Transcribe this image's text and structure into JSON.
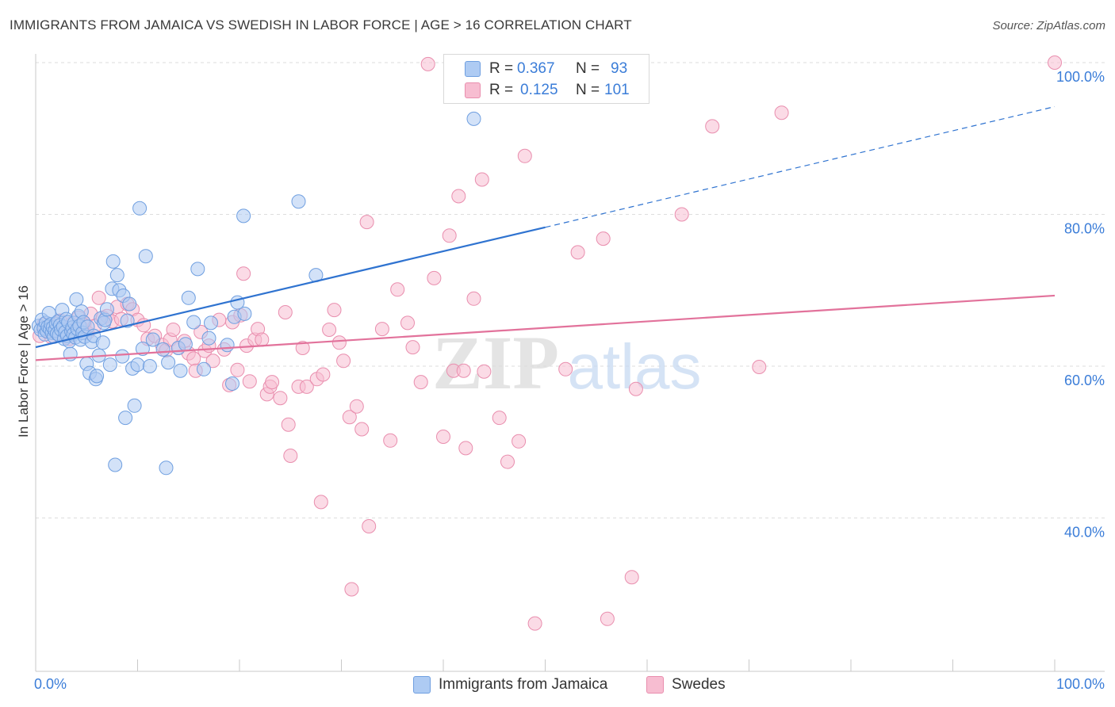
{
  "title": "IMMIGRANTS FROM JAMAICA VS SWEDISH IN LABOR FORCE | AGE > 16 CORRELATION CHART",
  "source": "Source: ZipAtlas.com",
  "watermark": {
    "zip": "ZIP",
    "atlas": "atlas"
  },
  "legend_top": {
    "r_label": "R =",
    "n_label": "N =",
    "rows": [
      {
        "r": "0.367",
        "n": "93"
      },
      {
        "r": "0.125",
        "n": "101"
      }
    ]
  },
  "legend_bottom": [
    "Immigrants from Jamaica",
    "Swedes"
  ],
  "chart_data": {
    "type": "scatter",
    "title": "IMMIGRANTS FROM JAMAICA VS SWEDISH IN LABOR FORCE | AGE > 16 CORRELATION CHART",
    "xlabel": "",
    "ylabel": "In Labor Force | Age > 16",
    "xlim": [
      0,
      100
    ],
    "ylim": [
      20,
      100
    ],
    "x_tick_labels": [
      {
        "value": 0,
        "label": "0.0%"
      },
      {
        "value": 100,
        "label": "100.0%"
      }
    ],
    "y_tick_labels": [
      {
        "value": 100,
        "label": "100.0%"
      },
      {
        "value": 80,
        "label": "80.0%"
      },
      {
        "value": 60,
        "label": "60.0%"
      },
      {
        "value": 40,
        "label": "40.0%"
      }
    ],
    "y_gridlines": [
      100,
      80,
      60,
      40
    ],
    "x_minor_ticks": [
      10,
      20,
      30,
      40,
      50,
      60,
      70,
      80,
      90,
      100
    ],
    "colors": {
      "jamaica_fill": "#aecbf3",
      "jamaica_stroke": "#6f9fe0",
      "jamaica_line": "#2f73d0",
      "swedes_fill": "#f7bdd1",
      "swedes_stroke": "#e98eae",
      "swedes_line": "#e2729b",
      "grid": "#dddddd",
      "axis_label": "#3b7dd8"
    },
    "series": [
      {
        "name": "Immigrants from Jamaica",
        "r": 0.367,
        "n": 93,
        "trend": {
          "x": [
            0,
            50
          ],
          "y": [
            62.5,
            78.3
          ],
          "dashed_extension": {
            "x": [
              50,
              100
            ],
            "y": [
              78.3,
              94.2
            ]
          }
        },
        "points": [
          [
            0.3,
            65.3
          ],
          [
            0.5,
            64.8
          ],
          [
            0.6,
            66.1
          ],
          [
            0.8,
            65.0
          ],
          [
            0.9,
            64.2
          ],
          [
            1.0,
            65.7
          ],
          [
            1.1,
            64.6
          ],
          [
            1.2,
            65.2
          ],
          [
            1.3,
            67.0
          ],
          [
            1.4,
            64.9
          ],
          [
            1.5,
            65.5
          ],
          [
            1.6,
            64.4
          ],
          [
            1.7,
            65.1
          ],
          [
            1.8,
            63.9
          ],
          [
            1.9,
            64.7
          ],
          [
            2.0,
            65.6
          ],
          [
            2.1,
            64.3
          ],
          [
            2.2,
            65.9
          ],
          [
            2.3,
            64.1
          ],
          [
            2.4,
            65.4
          ],
          [
            2.5,
            64.8
          ],
          [
            2.6,
            67.4
          ],
          [
            2.7,
            65.2
          ],
          [
            2.8,
            63.6
          ],
          [
            2.9,
            64.5
          ],
          [
            3.0,
            66.2
          ],
          [
            3.1,
            64.0
          ],
          [
            3.2,
            65.8
          ],
          [
            3.3,
            63.3
          ],
          [
            3.4,
            61.6
          ],
          [
            3.5,
            64.6
          ],
          [
            3.6,
            65.1
          ],
          [
            3.7,
            64.2
          ],
          [
            3.8,
            65.7
          ],
          [
            3.9,
            63.8
          ],
          [
            4.0,
            68.8
          ],
          [
            4.1,
            64.9
          ],
          [
            4.2,
            66.6
          ],
          [
            4.3,
            65.3
          ],
          [
            4.4,
            63.5
          ],
          [
            4.5,
            67.2
          ],
          [
            4.6,
            64.4
          ],
          [
            4.7,
            65.8
          ],
          [
            4.8,
            63.9
          ],
          [
            5.0,
            60.3
          ],
          [
            5.1,
            65.2
          ],
          [
            5.3,
            59.1
          ],
          [
            5.5,
            63.2
          ],
          [
            5.7,
            64.0
          ],
          [
            5.9,
            58.3
          ],
          [
            6.0,
            58.7
          ],
          [
            6.2,
            61.4
          ],
          [
            6.4,
            66.3
          ],
          [
            6.6,
            63.1
          ],
          [
            6.7,
            65.7
          ],
          [
            6.8,
            66.1
          ],
          [
            7.0,
            67.5
          ],
          [
            7.3,
            60.2
          ],
          [
            7.5,
            70.2
          ],
          [
            7.6,
            73.8
          ],
          [
            7.8,
            47.0
          ],
          [
            8.0,
            72.0
          ],
          [
            8.2,
            70.0
          ],
          [
            8.5,
            61.3
          ],
          [
            8.6,
            69.3
          ],
          [
            8.8,
            53.2
          ],
          [
            9.0,
            66.0
          ],
          [
            9.2,
            68.2
          ],
          [
            9.5,
            59.7
          ],
          [
            9.7,
            54.8
          ],
          [
            10.0,
            60.2
          ],
          [
            10.2,
            80.8
          ],
          [
            10.5,
            62.3
          ],
          [
            10.8,
            74.5
          ],
          [
            11.2,
            60.0
          ],
          [
            11.5,
            63.5
          ],
          [
            12.5,
            62.2
          ],
          [
            12.8,
            46.6
          ],
          [
            13.0,
            60.5
          ],
          [
            14.0,
            62.4
          ],
          [
            14.2,
            59.4
          ],
          [
            14.7,
            62.9
          ],
          [
            15.0,
            69.0
          ],
          [
            15.5,
            65.8
          ],
          [
            15.9,
            72.8
          ],
          [
            16.5,
            59.6
          ],
          [
            17.0,
            63.7
          ],
          [
            17.2,
            65.7
          ],
          [
            18.8,
            62.8
          ],
          [
            19.3,
            57.7
          ],
          [
            19.5,
            66.5
          ],
          [
            19.8,
            68.4
          ],
          [
            20.4,
            79.8
          ],
          [
            20.5,
            66.9
          ],
          [
            25.8,
            81.7
          ],
          [
            27.5,
            72.0
          ],
          [
            43.0,
            92.6
          ]
        ]
      },
      {
        "name": "Swedes",
        "r": 0.125,
        "n": 101,
        "trend": {
          "x": [
            0,
            100
          ],
          "y": [
            60.8,
            69.3
          ]
        },
        "points": [
          [
            0.4,
            64.0
          ],
          [
            0.8,
            65.5
          ],
          [
            1.2,
            64.8
          ],
          [
            1.5,
            63.9
          ],
          [
            1.8,
            65.2
          ],
          [
            2.1,
            64.5
          ],
          [
            2.4,
            66.0
          ],
          [
            2.7,
            64.2
          ],
          [
            3.0,
            65.0
          ],
          [
            3.3,
            63.6
          ],
          [
            3.6,
            65.7
          ],
          [
            3.9,
            64.8
          ],
          [
            4.2,
            66.4
          ],
          [
            4.5,
            65.1
          ],
          [
            4.8,
            65.6
          ],
          [
            5.1,
            64.4
          ],
          [
            5.4,
            66.9
          ],
          [
            5.8,
            65.3
          ],
          [
            6.2,
            69.0
          ],
          [
            6.6,
            66.4
          ],
          [
            7.0,
            66.6
          ],
          [
            7.5,
            65.9
          ],
          [
            8.0,
            67.8
          ],
          [
            8.4,
            66.2
          ],
          [
            9.0,
            68.2
          ],
          [
            9.5,
            67.5
          ],
          [
            10.0,
            66.1
          ],
          [
            10.6,
            65.4
          ],
          [
            11.0,
            63.6
          ],
          [
            11.7,
            64.0
          ],
          [
            12.4,
            62.8
          ],
          [
            12.8,
            62.1
          ],
          [
            13.2,
            63.5
          ],
          [
            13.5,
            64.8
          ],
          [
            14.0,
            62.4
          ],
          [
            14.6,
            63.3
          ],
          [
            15.0,
            61.7
          ],
          [
            15.5,
            61.0
          ],
          [
            15.7,
            59.4
          ],
          [
            16.2,
            64.5
          ],
          [
            16.6,
            62.0
          ],
          [
            17.0,
            62.7
          ],
          [
            17.4,
            60.7
          ],
          [
            18.0,
            66.1
          ],
          [
            18.5,
            62.2
          ],
          [
            19.0,
            57.5
          ],
          [
            19.3,
            65.8
          ],
          [
            19.8,
            59.5
          ],
          [
            20.1,
            66.7
          ],
          [
            20.4,
            72.2
          ],
          [
            20.7,
            62.7
          ],
          [
            21.0,
            58.0
          ],
          [
            21.5,
            63.5
          ],
          [
            21.8,
            64.9
          ],
          [
            22.2,
            63.5
          ],
          [
            22.7,
            56.3
          ],
          [
            23.0,
            57.3
          ],
          [
            23.2,
            57.9
          ],
          [
            24.0,
            55.8
          ],
          [
            24.5,
            67.1
          ],
          [
            24.8,
            52.3
          ],
          [
            25.0,
            48.2
          ],
          [
            25.8,
            57.3
          ],
          [
            26.2,
            62.4
          ],
          [
            26.6,
            57.3
          ],
          [
            27.6,
            58.3
          ],
          [
            28.0,
            42.1
          ],
          [
            28.2,
            58.9
          ],
          [
            28.8,
            64.8
          ],
          [
            29.3,
            67.4
          ],
          [
            29.8,
            63.1
          ],
          [
            30.2,
            60.7
          ],
          [
            30.8,
            53.3
          ],
          [
            31.0,
            30.6
          ],
          [
            31.5,
            54.7
          ],
          [
            32.0,
            51.7
          ],
          [
            32.5,
            79.0
          ],
          [
            32.7,
            38.9
          ],
          [
            34.0,
            64.9
          ],
          [
            34.8,
            50.2
          ],
          [
            35.5,
            70.1
          ],
          [
            36.5,
            65.7
          ],
          [
            37.0,
            62.5
          ],
          [
            37.8,
            57.9
          ],
          [
            38.5,
            99.8
          ],
          [
            39.1,
            71.6
          ],
          [
            40.0,
            50.7
          ],
          [
            40.6,
            77.2
          ],
          [
            41.0,
            59.4
          ],
          [
            41.5,
            82.4
          ],
          [
            42.0,
            59.4
          ],
          [
            42.2,
            49.2
          ],
          [
            43.0,
            68.9
          ],
          [
            43.8,
            84.6
          ],
          [
            44.0,
            59.3
          ],
          [
            45.5,
            53.2
          ],
          [
            46.3,
            47.4
          ],
          [
            47.4,
            50.1
          ],
          [
            48.0,
            87.7
          ],
          [
            49.0,
            26.1
          ],
          [
            52.0,
            59.6
          ],
          [
            53.2,
            75.0
          ],
          [
            55.7,
            76.8
          ],
          [
            56.1,
            26.7
          ],
          [
            58.5,
            32.2
          ],
          [
            58.9,
            57.0
          ],
          [
            63.4,
            80.0
          ],
          [
            66.4,
            91.6
          ],
          [
            71.0,
            59.9
          ],
          [
            73.2,
            93.4
          ],
          [
            100.0,
            100.0
          ]
        ]
      }
    ]
  }
}
